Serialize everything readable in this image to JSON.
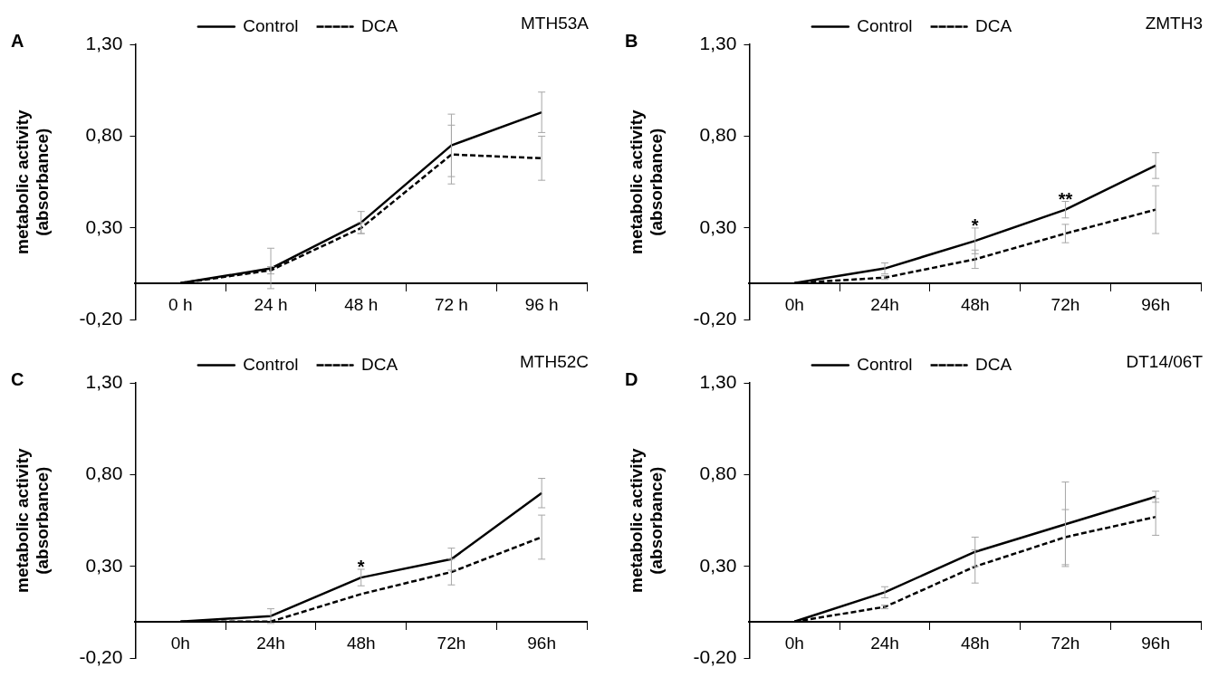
{
  "chart_data": [
    {
      "type": "line",
      "title": "MTH53A",
      "ylabel": "metabolic activity\n(absorbance)",
      "categories": [
        "0 h",
        "24 h",
        "48 h",
        "72 h",
        "96 h"
      ],
      "series": [
        {
          "name": "Control",
          "color": "#000000",
          "line_style": "solid",
          "values": [
            0,
            0.08,
            0.33,
            0.75,
            0.93
          ],
          "errors": [
            null,
            0.11,
            0.06,
            0.17,
            0.11
          ]
        },
        {
          "name": "DCA",
          "color": "#000000",
          "line_style": "dashed",
          "values": [
            0,
            0.07,
            0.3,
            0.7,
            0.68
          ],
          "errors": [
            null,
            0.02,
            0.03,
            0.16,
            0.12
          ]
        }
      ],
      "ylim": [
        -0.2,
        1.3
      ],
      "yticks": [
        {
          "value": -0.2,
          "label": "-0,20"
        },
        {
          "value": 0.3,
          "label": "0,30"
        },
        {
          "value": 0.8,
          "label": "0,80"
        },
        {
          "value": 1.3,
          "label": "1,30"
        }
      ],
      "legend": "top",
      "marker": "none",
      "grid": false,
      "annotations": [
        "A"
      ]
    },
    {
      "type": "line",
      "title": "ZMTH3",
      "ylabel": "metabolic activity\n(absorbance)",
      "categories": [
        "0h",
        "24h",
        "48h",
        "72h",
        "96h"
      ],
      "series": [
        {
          "name": "Control",
          "color": "#000000",
          "line_style": "solid",
          "values": [
            0,
            0.08,
            0.23,
            0.4,
            0.64
          ],
          "errors": [
            null,
            0.03,
            0.07,
            0.045,
            0.07
          ]
        },
        {
          "name": "DCA",
          "color": "#000000",
          "line_style": "dashed",
          "values": [
            0,
            0.03,
            0.13,
            0.27,
            0.4
          ],
          "errors": [
            null,
            0.01,
            0.05,
            0.05,
            0.13
          ]
        }
      ],
      "ylim": [
        -0.2,
        1.3
      ],
      "yticks": [
        {
          "value": -0.2,
          "label": "-0,20"
        },
        {
          "value": 0.3,
          "label": "0,30"
        },
        {
          "value": 0.8,
          "label": "0,80"
        },
        {
          "value": 1.3,
          "label": "1,30"
        }
      ],
      "legend": "top",
      "marker": "none",
      "grid": false,
      "annotations": [
        "B",
        {
          "text": "*",
          "x": "48h",
          "y": 0.3
        },
        {
          "text": "**",
          "x": "72h",
          "y": 0.445
        }
      ]
    },
    {
      "type": "line",
      "title": "MTH52C",
      "ylabel": "metabolic activity\n(absorbance)",
      "categories": [
        "0h",
        "24h",
        "48h",
        "72h",
        "96h"
      ],
      "series": [
        {
          "name": "Control",
          "color": "#000000",
          "line_style": "solid",
          "values": [
            0,
            0.03,
            0.24,
            0.34,
            0.7
          ],
          "errors": [
            null,
            0.04,
            0.045,
            0.06,
            0.08
          ]
        },
        {
          "name": "DCA",
          "color": "#000000",
          "line_style": "dashed",
          "values": [
            0,
            0,
            0.15,
            0.27,
            0.46
          ],
          "errors": [
            null,
            null,
            null,
            0.07,
            0.12
          ]
        }
      ],
      "ylim": [
        -0.2,
        1.3
      ],
      "yticks": [
        {
          "value": -0.2,
          "label": "-0,20"
        },
        {
          "value": 0.3,
          "label": "0,30"
        },
        {
          "value": 0.8,
          "label": "0,80"
        },
        {
          "value": 1.3,
          "label": "1,30"
        }
      ],
      "legend": "top",
      "marker": "none",
      "grid": false,
      "annotations": [
        "C",
        {
          "text": "*",
          "x": "48h",
          "y": 0.285
        }
      ]
    },
    {
      "type": "line",
      "title": "DT14/06T",
      "ylabel": "metabolic activity\n(absorbance)",
      "categories": [
        "0h",
        "24h",
        "48h",
        "72h",
        "96h"
      ],
      "series": [
        {
          "name": "Control",
          "color": "#000000",
          "line_style": "solid",
          "values": [
            0,
            0.16,
            0.38,
            0.53,
            0.68
          ],
          "errors": [
            null,
            0.03,
            0.08,
            0.23,
            0.03
          ]
        },
        {
          "name": "DCA",
          "color": "#000000",
          "line_style": "dashed",
          "values": [
            0,
            0.08,
            0.3,
            0.46,
            0.57
          ],
          "errors": [
            null,
            0.01,
            0.09,
            0.15,
            0.1
          ]
        }
      ],
      "ylim": [
        -0.2,
        1.3
      ],
      "yticks": [
        {
          "value": -0.2,
          "label": "-0,20"
        },
        {
          "value": 0.3,
          "label": "0,30"
        },
        {
          "value": 0.8,
          "label": "0,80"
        },
        {
          "value": 1.3,
          "label": "1,30"
        }
      ],
      "legend": "top",
      "marker": "none",
      "grid": false,
      "annotations": [
        "D"
      ]
    }
  ]
}
